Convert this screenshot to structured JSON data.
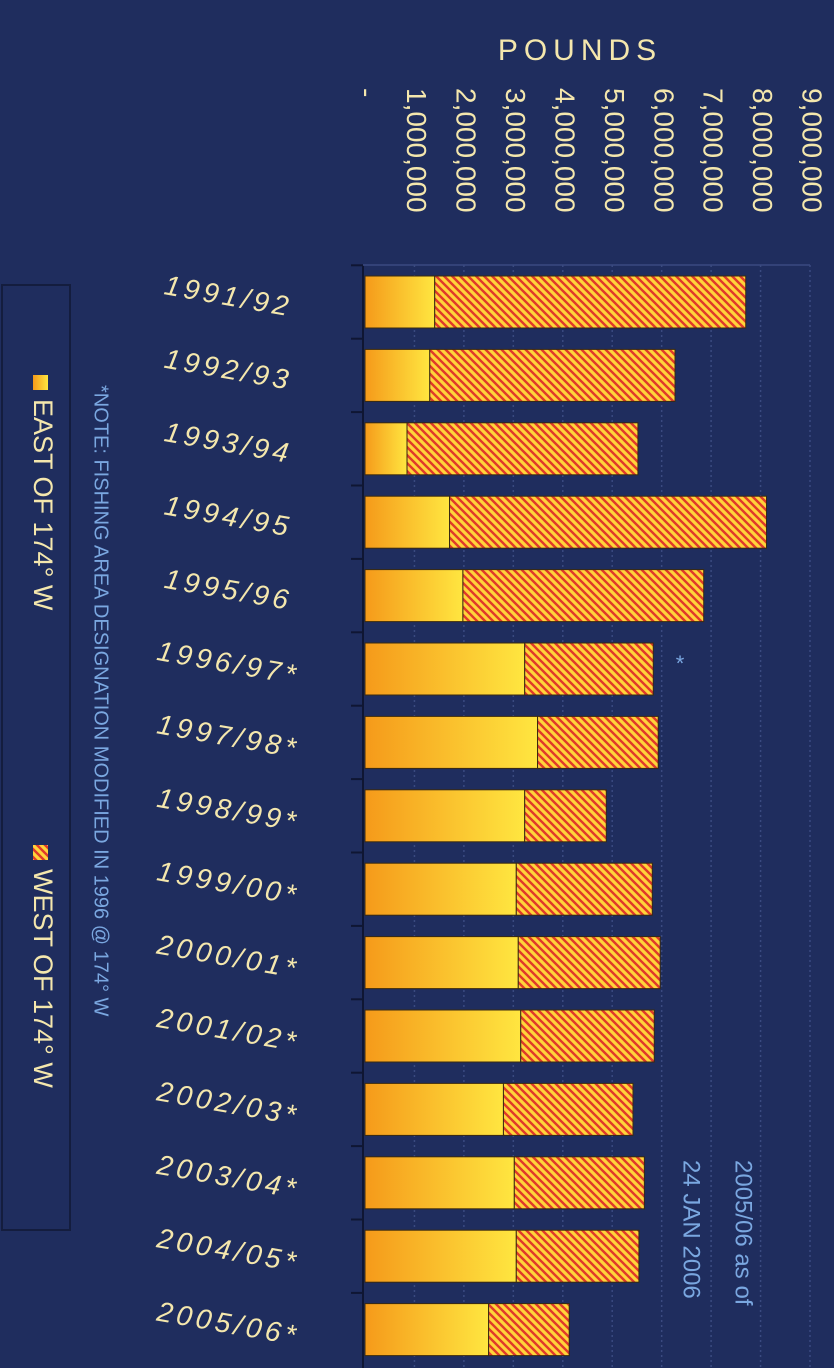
{
  "chart_data": {
    "type": "bar",
    "orientation": "horizontal",
    "stacked": true,
    "x_label": "POUNDS",
    "categories": [
      "1991/92",
      "1992/93",
      "1993/94",
      "1994/95",
      "1995/96",
      "1996/97*",
      "1997/98*",
      "1998/99*",
      "1999/00*",
      "2000/01*",
      "2001/02*",
      "2002/03*",
      "2003/04*",
      "2004/05*",
      "2005/06*"
    ],
    "series": [
      {
        "name": "EAST OF 174° W",
        "color": "#fbb829",
        "values": [
          1410000,
          1310000,
          850000,
          1710000,
          1980000,
          3230000,
          3490000,
          3230000,
          3060000,
          3100000,
          3150000,
          2800000,
          3020000,
          3060000,
          2500000
        ]
      },
      {
        "name": "WEST OF 174° W",
        "color": "#e03a2a",
        "values": [
          6290000,
          4960000,
          4670000,
          6410000,
          4870000,
          2600000,
          2440000,
          1650000,
          2750000,
          2870000,
          2700000,
          2620000,
          2630000,
          2480000,
          1630000
        ]
      }
    ],
    "xlim": [
      0,
      9000000
    ],
    "xticks": [
      {
        "value": 0,
        "label": "-"
      },
      {
        "value": 1000000,
        "label": "1,000,000"
      },
      {
        "value": 2000000,
        "label": "2,000,000"
      },
      {
        "value": 3000000,
        "label": "3,000,000"
      },
      {
        "value": 4000000,
        "label": "4,000,000"
      },
      {
        "value": 5000000,
        "label": "5,000,000"
      },
      {
        "value": 6000000,
        "label": "6,000,000"
      },
      {
        "value": 7000000,
        "label": "7,000,000"
      },
      {
        "value": 8000000,
        "label": "8,000,000"
      },
      {
        "value": 9000000,
        "label": "9,000,000"
      }
    ],
    "grid": true,
    "note": "*NOTE: FISHING AREA DESIGNATION MODIFIED IN 1996 @ 174° W",
    "annotations": [
      "2005/06 as of",
      "24 JAN 2006",
      "*"
    ]
  }
}
